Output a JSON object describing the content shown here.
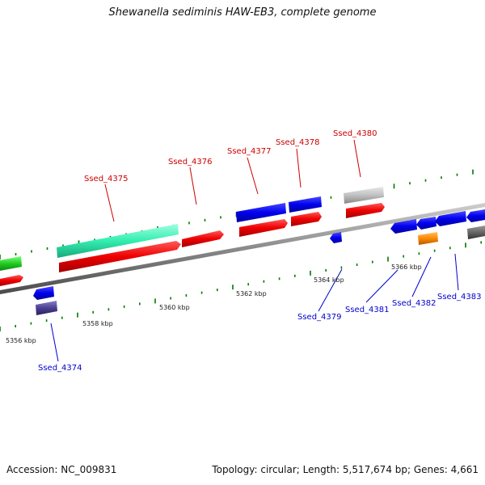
{
  "title": "Shewanella sediminis HAW-EB3, complete genome",
  "footer": {
    "accession": "Accession: NC_009831",
    "stats": "Topology: circular; Length: 5,517,674 bp; Genes: 4,661"
  },
  "colors": {
    "forward_label": "#cc0000",
    "reverse_label": "#0000cc",
    "backbone": "#888888",
    "tick": "#007700"
  },
  "scale_labels": [
    "5356 kbp",
    "5358 kbp",
    "5360 kbp",
    "5362 kbp",
    "5364 kbp",
    "5366 kbp"
  ],
  "gene_labels": {
    "top": [
      "Ssed_4375",
      "Ssed_4376",
      "Ssed_4377",
      "Ssed_4378",
      "Ssed_4380"
    ],
    "bottom": [
      "Ssed_4374",
      "Ssed_4379",
      "Ssed_4381",
      "Ssed_4382",
      "Ssed_4383"
    ]
  }
}
